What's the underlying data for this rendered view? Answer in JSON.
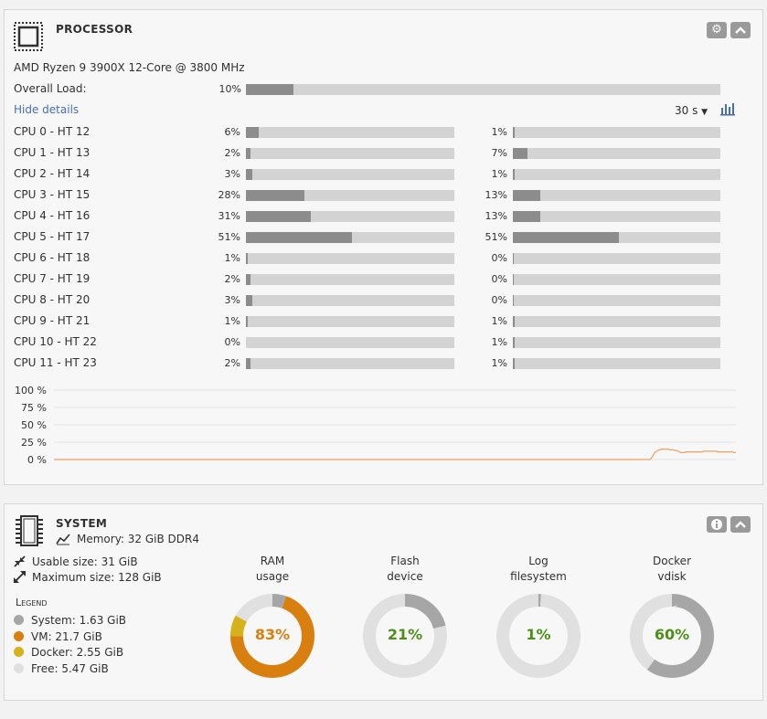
{
  "processor": {
    "title": "PROCESSOR",
    "icon": "cpu-chip-icon",
    "model": "AMD Ryzen 9 3900X 12-Core @ 3800 MHz",
    "overall_label": "Overall Load:",
    "overall_pct_text": "10%",
    "overall_value": 10,
    "hide_details": "Hide details",
    "interval": "30 s",
    "interval_caret": "▼",
    "cores": [
      {
        "label": "CPU 0 - HT 12",
        "a_text": "6%",
        "a": 6,
        "b_text": "1%",
        "b": 1
      },
      {
        "label": "CPU 1 - HT 13",
        "a_text": "2%",
        "a": 2,
        "b_text": "7%",
        "b": 7
      },
      {
        "label": "CPU 2 - HT 14",
        "a_text": "3%",
        "a": 3,
        "b_text": "1%",
        "b": 1
      },
      {
        "label": "CPU 3 - HT 15",
        "a_text": "28%",
        "a": 28,
        "b_text": "13%",
        "b": 13
      },
      {
        "label": "CPU 4 - HT 16",
        "a_text": "31%",
        "a": 31,
        "b_text": "13%",
        "b": 13
      },
      {
        "label": "CPU 5 - HT 17",
        "a_text": "51%",
        "a": 51,
        "b_text": "51%",
        "b": 51
      },
      {
        "label": "CPU 6 - HT 18",
        "a_text": "1%",
        "a": 1,
        "b_text": "0%",
        "b": 0
      },
      {
        "label": "CPU 7 - HT 19",
        "a_text": "2%",
        "a": 2,
        "b_text": "0%",
        "b": 0
      },
      {
        "label": "CPU 8 - HT 20",
        "a_text": "3%",
        "a": 3,
        "b_text": "0%",
        "b": 0
      },
      {
        "label": "CPU 9 - HT 21",
        "a_text": "1%",
        "a": 1,
        "b_text": "1%",
        "b": 1
      },
      {
        "label": "CPU 10 - HT 22",
        "a_text": "0%",
        "a": 0,
        "b_text": "1%",
        "b": 1
      },
      {
        "label": "CPU 11 - HT 23",
        "a_text": "2%",
        "a": 2,
        "b_text": "1%",
        "b": 1
      }
    ],
    "chart_ticks": [
      "100 %",
      "75 %",
      "50 %",
      "25 %",
      "0 %"
    ],
    "chart_line_color": "#f0a060",
    "chart_series": [
      0,
      0,
      0,
      0,
      0,
      0,
      0,
      0,
      0,
      0,
      0,
      0,
      0,
      0,
      0,
      0,
      0,
      0,
      0,
      0,
      0,
      0,
      0,
      0,
      0,
      0,
      0,
      0,
      0,
      0,
      0,
      0,
      0,
      0,
      0,
      0,
      0,
      0,
      0,
      0,
      0,
      0,
      0,
      0,
      0,
      0,
      0,
      0,
      0,
      0,
      0,
      0,
      0,
      0,
      0,
      0,
      0,
      0,
      0,
      0,
      0,
      0,
      0,
      0,
      0,
      0,
      0,
      0,
      0,
      0,
      0,
      0,
      0,
      0,
      0,
      0,
      0,
      0,
      0,
      0,
      0,
      0,
      0,
      0,
      0,
      0,
      0,
      0,
      0,
      0,
      0,
      0,
      0,
      0,
      0,
      0,
      0,
      0,
      0,
      0,
      0,
      0,
      0,
      0,
      0,
      0,
      0,
      0,
      0,
      0,
      0,
      0,
      0,
      0,
      0,
      0,
      0,
      0,
      0,
      0,
      0,
      0,
      0,
      0,
      0,
      0,
      0,
      0,
      0,
      0,
      0,
      0,
      0,
      0,
      0,
      0,
      0,
      0,
      0,
      0,
      0,
      0,
      0,
      0,
      0,
      0,
      0,
      0,
      0,
      0,
      0,
      0,
      0,
      0,
      0,
      0,
      0,
      0,
      0,
      0,
      0,
      0,
      0,
      0,
      0,
      0,
      0,
      0,
      0,
      0,
      0,
      0,
      0,
      0,
      0,
      0,
      0,
      0,
      0,
      0,
      0,
      0,
      0,
      0,
      0,
      0,
      0,
      0,
      0,
      0,
      0,
      0,
      0,
      0,
      0,
      0,
      0,
      0,
      0,
      0,
      0,
      0,
      0,
      0,
      0,
      0,
      0,
      0,
      0,
      0,
      0,
      0,
      0,
      0,
      0,
      0,
      0,
      0,
      0,
      0,
      0,
      0,
      0,
      0,
      0,
      0,
      0,
      0,
      0,
      0,
      0,
      0,
      0,
      0,
      0,
      0,
      0,
      0,
      0,
      0,
      0,
      0,
      0,
      0,
      0,
      0,
      0,
      0,
      0,
      0,
      0,
      0,
      0,
      0,
      0,
      0,
      0,
      0,
      0,
      0,
      0,
      0,
      0,
      0,
      0,
      0,
      0,
      0,
      0,
      0,
      0,
      0,
      0,
      0,
      0,
      0,
      0,
      0,
      0,
      0,
      0,
      0,
      0,
      0,
      0,
      0,
      0,
      0,
      0,
      0,
      0,
      0,
      0,
      0,
      0,
      0,
      0,
      0,
      0,
      0,
      0,
      0,
      0,
      0,
      0,
      0,
      0,
      0,
      0,
      0,
      0,
      0,
      0,
      0,
      0,
      0,
      0,
      0,
      0,
      0,
      0,
      0,
      0,
      0,
      0,
      0,
      0,
      0,
      0,
      0,
      0,
      0,
      0,
      0,
      0,
      0,
      0,
      0,
      0,
      0,
      0,
      0,
      0,
      0,
      0,
      0,
      0,
      0,
      0,
      0,
      0,
      0,
      0,
      0,
      0,
      0,
      0,
      0,
      0,
      0,
      0,
      0,
      0,
      0,
      0,
      0,
      0,
      0,
      0,
      0,
      0,
      0,
      0,
      0,
      0,
      0,
      0,
      0,
      0,
      0,
      0,
      0,
      0,
      0,
      0,
      0,
      0,
      0,
      0,
      0,
      0,
      0,
      0,
      0,
      0,
      0,
      0,
      0,
      0,
      0,
      0,
      0,
      0,
      0,
      0,
      0,
      0,
      0,
      0,
      0,
      0,
      0,
      0,
      0,
      0,
      0,
      0,
      0,
      0,
      0,
      0,
      0,
      0,
      0,
      0,
      0,
      0,
      0,
      0,
      0,
      0,
      0,
      0,
      0,
      0,
      0,
      0,
      0,
      0,
      0,
      0,
      0,
      0,
      0,
      0,
      0,
      0,
      0,
      0,
      0,
      0,
      0,
      0,
      0,
      0,
      0,
      0,
      0,
      0,
      0,
      0,
      0,
      0,
      0,
      0,
      0,
      0,
      0,
      0,
      0,
      0,
      0,
      0,
      0,
      0,
      0,
      0,
      0,
      0,
      0,
      0,
      0,
      0,
      0,
      0,
      0,
      0,
      0,
      0,
      0,
      0,
      0,
      0,
      0,
      0,
      0,
      0,
      1,
      3,
      6,
      9,
      11,
      12,
      13,
      14,
      14,
      15,
      15,
      15,
      15,
      15,
      15,
      15,
      14,
      14,
      14,
      14,
      13,
      13,
      13,
      12,
      11,
      10,
      10,
      10,
      10,
      11,
      11,
      11,
      11,
      11,
      11,
      11,
      11,
      11,
      11,
      11,
      11,
      11,
      11,
      11,
      12,
      12,
      12,
      12,
      12,
      12,
      12,
      12,
      12,
      12,
      12,
      12,
      11,
      11,
      11,
      11,
      11,
      11,
      11,
      11,
      11,
      11,
      11,
      11,
      11,
      10,
      10,
      10
    ]
  },
  "system": {
    "title": "SYSTEM",
    "icon": "memory-module-icon",
    "memory_line": "Memory: 32 GiB DDR4",
    "usable_line": "Usable size: 31 GiB",
    "maximum_line": "Maximum size: 128 GiB",
    "legend_title": "Legend",
    "legend": [
      {
        "label": "System: 1.63 GiB",
        "color": "#a6a6a6"
      },
      {
        "label": "VM: 21.7 GiB",
        "color": "#d97f0f"
      },
      {
        "label": "Docker: 2.55 GiB",
        "color": "#d6b11a"
      },
      {
        "label": "Free: 5.47 GiB",
        "color": "#e0e0e0"
      }
    ],
    "donuts": [
      {
        "line1": "RAM",
        "line2": "usage",
        "pct_text": "83%",
        "text_color": "#d97f0f",
        "segments": [
          {
            "value": 5.3,
            "color": "#a6a6a6"
          },
          {
            "value": 69.4,
            "color": "#d97f0f"
          },
          {
            "value": 8.2,
            "color": "#d6b11a"
          },
          {
            "value": 17.1,
            "color": "#e0e0e0"
          }
        ]
      },
      {
        "line1": "Flash",
        "line2": "device",
        "pct_text": "21%",
        "text_color": "#4e8f1a",
        "segments": [
          {
            "value": 21,
            "color": "#a6a6a6"
          },
          {
            "value": 79,
            "color": "#e0e0e0"
          }
        ]
      },
      {
        "line1": "Log",
        "line2": "filesystem",
        "pct_text": "1%",
        "text_color": "#4e8f1a",
        "segments": [
          {
            "value": 1,
            "color": "#a6a6a6"
          },
          {
            "value": 99,
            "color": "#e0e0e0"
          }
        ]
      },
      {
        "line1": "Docker",
        "line2": "vdisk",
        "pct_text": "60%",
        "text_color": "#4e8f1a",
        "segments": [
          {
            "value": 60,
            "color": "#a6a6a6"
          },
          {
            "value": 40,
            "color": "#e0e0e0"
          }
        ]
      }
    ]
  }
}
